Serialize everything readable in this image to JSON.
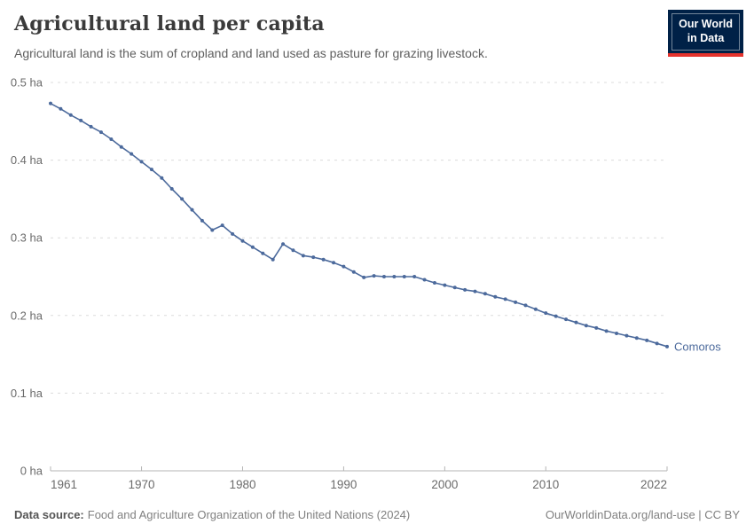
{
  "header": {
    "title": "Agricultural land per capita",
    "subtitle": "Agricultural land is the sum of cropland and land used as pasture for grazing livestock."
  },
  "logo": {
    "line1": "Our World",
    "line2": "in Data"
  },
  "colors": {
    "accent": "#4C6A9C",
    "logo_bg": "#002147",
    "logo_bar": "#E5332D",
    "gridline": "#DCDCDC",
    "axis": "#B5B5B5",
    "tick_label": "#6B6B6B"
  },
  "chart_data": {
    "type": "line",
    "title": "Agricultural land per capita",
    "xlabel": "",
    "ylabel": "ha",
    "x_range": [
      1961,
      2022
    ],
    "ylim": [
      0,
      0.5
    ],
    "grid": "horizontal-dashed",
    "legend_position": "end-of-line-label",
    "y_ticks": [
      {
        "value": 0.0,
        "label": "0 ha"
      },
      {
        "value": 0.1,
        "label": "0.1 ha"
      },
      {
        "value": 0.2,
        "label": "0.2 ha"
      },
      {
        "value": 0.3,
        "label": "0.3 ha"
      },
      {
        "value": 0.4,
        "label": "0.4 ha"
      },
      {
        "value": 0.5,
        "label": "0.5 ha"
      }
    ],
    "x_ticks": [
      {
        "value": 1961,
        "label": "1961"
      },
      {
        "value": 1970,
        "label": "1970"
      },
      {
        "value": 1980,
        "label": "1980"
      },
      {
        "value": 1990,
        "label": "1990"
      },
      {
        "value": 2000,
        "label": "2000"
      },
      {
        "value": 2010,
        "label": "2010"
      },
      {
        "value": 2022,
        "label": "2022"
      }
    ],
    "series": [
      {
        "name": "Comoros",
        "color": "#4C6A9C",
        "years": [
          1961,
          1962,
          1963,
          1964,
          1965,
          1966,
          1967,
          1968,
          1969,
          1970,
          1971,
          1972,
          1973,
          1974,
          1975,
          1976,
          1977,
          1978,
          1979,
          1980,
          1981,
          1982,
          1983,
          1984,
          1985,
          1986,
          1987,
          1988,
          1989,
          1990,
          1991,
          1992,
          1993,
          1994,
          1995,
          1996,
          1997,
          1998,
          1999,
          2000,
          2001,
          2002,
          2003,
          2004,
          2005,
          2006,
          2007,
          2008,
          2009,
          2010,
          2011,
          2012,
          2013,
          2014,
          2015,
          2016,
          2017,
          2018,
          2019,
          2020,
          2021,
          2022
        ],
        "values": [
          0.473,
          0.466,
          0.458,
          0.451,
          0.443,
          0.436,
          0.427,
          0.417,
          0.408,
          0.398,
          0.388,
          0.377,
          0.363,
          0.35,
          0.336,
          0.322,
          0.31,
          0.316,
          0.305,
          0.296,
          0.288,
          0.28,
          0.272,
          0.292,
          0.284,
          0.277,
          0.275,
          0.272,
          0.268,
          0.263,
          0.256,
          0.249,
          0.251,
          0.25,
          0.25,
          0.25,
          0.25,
          0.246,
          0.242,
          0.239,
          0.236,
          0.233,
          0.231,
          0.228,
          0.224,
          0.221,
          0.217,
          0.213,
          0.208,
          0.203,
          0.199,
          0.195,
          0.191,
          0.187,
          0.184,
          0.18,
          0.177,
          0.174,
          0.171,
          0.168,
          0.164,
          0.16
        ]
      }
    ]
  },
  "footer": {
    "source_label": "Data source:",
    "source_text": "Food and Agriculture Organization of the United Nations (2024)",
    "credit": "OurWorldinData.org/land-use | CC BY"
  }
}
